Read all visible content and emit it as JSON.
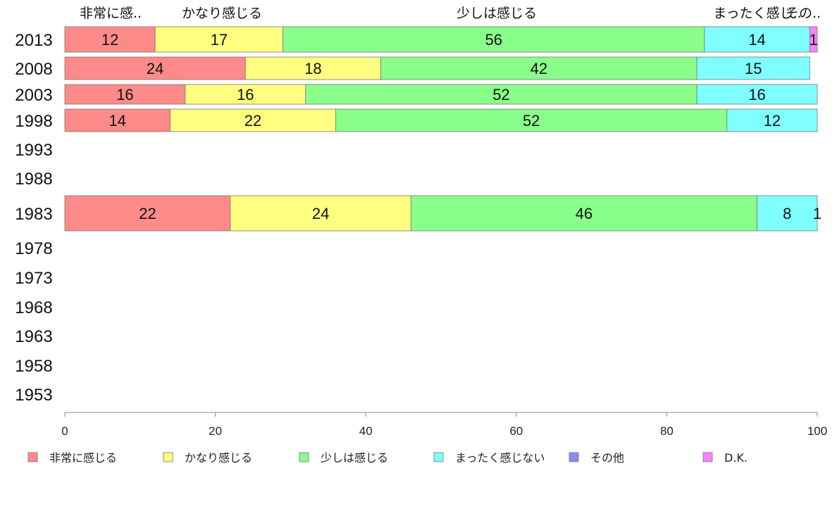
{
  "chart_data": {
    "type": "bar",
    "orientation": "horizontal-stacked",
    "xlim": [
      0,
      100
    ],
    "x_ticks": [
      "0",
      "20",
      "40",
      "60",
      "80",
      "100"
    ],
    "years": [
      "2013",
      "2008",
      "2003",
      "1998",
      "1993",
      "1988",
      "1983",
      "1978",
      "1973",
      "1968",
      "1963",
      "1958",
      "1953"
    ],
    "top_labels": [
      "非常に感..",
      "かなり感じる",
      "少しは感じる",
      "まったく感じ..",
      "その.."
    ],
    "series": [
      {
        "name": "非常に感じる",
        "color": "#FF8A8A",
        "values": [
          12,
          24,
          16,
          14,
          null,
          null,
          22,
          null,
          null,
          null,
          null,
          null,
          null
        ]
      },
      {
        "name": "かなり感じる",
        "color": "#FFFF80",
        "values": [
          17,
          18,
          16,
          22,
          null,
          null,
          24,
          null,
          null,
          null,
          null,
          null,
          null
        ]
      },
      {
        "name": "少しは感じる",
        "color": "#8AFF8A",
        "values": [
          56,
          42,
          52,
          52,
          null,
          null,
          46,
          null,
          null,
          null,
          null,
          null,
          null
        ]
      },
      {
        "name": "まったく感じない",
        "color": "#80FFFF",
        "values": [
          14,
          15,
          16,
          12,
          null,
          null,
          8,
          null,
          null,
          null,
          null,
          null,
          null
        ]
      },
      {
        "name": "その他",
        "color": "#8A8AFF",
        "values": [
          0,
          0,
          0,
          0,
          null,
          null,
          1,
          null,
          null,
          null,
          null,
          null,
          null
        ]
      },
      {
        "name": "D.K.",
        "color": "#FF80FF",
        "values": [
          1,
          0,
          0,
          0,
          null,
          null,
          0,
          null,
          null,
          null,
          null,
          null,
          null
        ]
      }
    ],
    "data_labels": [
      [
        "12",
        "17",
        "56",
        "14",
        "",
        "1"
      ],
      [
        "24",
        "18",
        "42",
        "15",
        "",
        ""
      ],
      [
        "16",
        "16",
        "52",
        "16",
        "",
        ""
      ],
      [
        "14",
        "22",
        "52",
        "12",
        "",
        ""
      ],
      [],
      [],
      [
        "22",
        "24",
        "46",
        "8",
        "1",
        ""
      ],
      [],
      [],
      [],
      [],
      [],
      []
    ],
    "legend": [
      "非常に感じる",
      "かなり感じる",
      "少しは感じる",
      "まったく感じない",
      "その他",
      "D.K."
    ],
    "legend_position": "bottom",
    "grid": false
  }
}
